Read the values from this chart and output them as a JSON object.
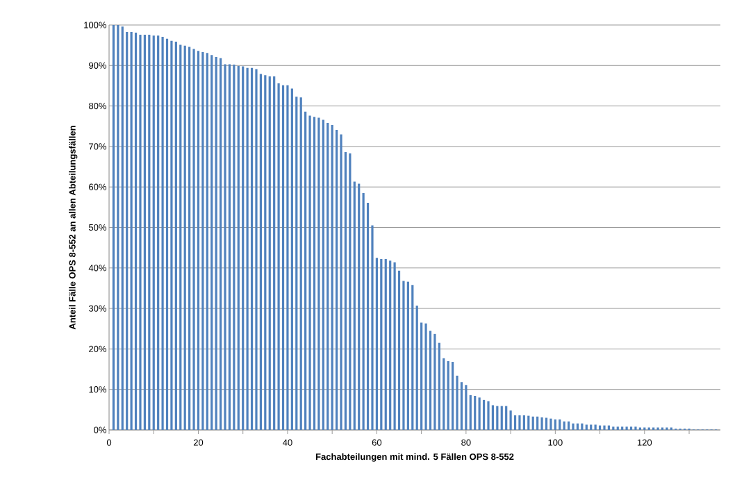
{
  "chart_data": {
    "type": "bar",
    "xlabel": "Fachabteilungen mit mind. 5 Fällen OPS 8-552",
    "ylabel": "Anteil Fälle OPS 8-552 an allen Abteilungsfällen",
    "color": "#4f81bd",
    "x": [
      1,
      2,
      3,
      4,
      5,
      6,
      7,
      8,
      9,
      10,
      11,
      12,
      13,
      14,
      15,
      16,
      17,
      18,
      19,
      20,
      21,
      22,
      23,
      24,
      25,
      26,
      27,
      28,
      29,
      30,
      31,
      32,
      33,
      34,
      35,
      36,
      37,
      38,
      39,
      40,
      41,
      42,
      43,
      44,
      45,
      46,
      47,
      48,
      49,
      50,
      51,
      52,
      53,
      54,
      55,
      56,
      57,
      58,
      59,
      60,
      61,
      62,
      63,
      64,
      65,
      66,
      67,
      68,
      69,
      70,
      71,
      72,
      73,
      74,
      75,
      76,
      77,
      78,
      79,
      80,
      81,
      82,
      83,
      84,
      85,
      86,
      87,
      88,
      89,
      90,
      91,
      92,
      93,
      94,
      95,
      96,
      97,
      98,
      99,
      100,
      101,
      102,
      103,
      104,
      105,
      106,
      107,
      108,
      109,
      110,
      111,
      112,
      113,
      114,
      115,
      116,
      117,
      118,
      119,
      120,
      121,
      122,
      123,
      124,
      125,
      126,
      127,
      128,
      129,
      130,
      131,
      132,
      133,
      134,
      135,
      136
    ],
    "values": [
      100,
      100,
      99.6,
      98.3,
      98.3,
      98.1,
      97.6,
      97.6,
      97.6,
      97.4,
      97.4,
      97.1,
      96.6,
      96.1,
      95.9,
      95.1,
      94.9,
      94.6,
      94.1,
      93.6,
      93.3,
      93.1,
      92.6,
      92.1,
      91.8,
      90.3,
      90.3,
      90.2,
      89.9,
      89.8,
      89.4,
      89.4,
      89.1,
      87.9,
      87.6,
      87.3,
      87.3,
      85.6,
      85.1,
      85.1,
      84.3,
      82.3,
      82.1,
      78.6,
      77.6,
      77.3,
      77.1,
      76.6,
      75.8,
      75.3,
      74.1,
      73.0,
      68.6,
      68.3,
      61.3,
      60.8,
      58.5,
      56.1,
      50.5,
      42.5,
      42.2,
      42.2,
      41.8,
      41.4,
      39.3,
      36.8,
      36.6,
      35.8,
      30.7,
      26.5,
      26.3,
      24.5,
      23.7,
      21.5,
      17.7,
      17.0,
      16.8,
      13.4,
      11.8,
      11.1,
      8.6,
      8.4,
      8.0,
      7.4,
      7.1,
      6.1,
      5.9,
      5.9,
      5.9,
      4.8,
      3.6,
      3.6,
      3.6,
      3.5,
      3.3,
      3.3,
      3.1,
      3.0,
      2.8,
      2.6,
      2.6,
      2.1,
      2.1,
      1.6,
      1.6,
      1.6,
      1.3,
      1.3,
      1.3,
      1.1,
      1.1,
      1.1,
      0.8,
      0.8,
      0.8,
      0.8,
      0.8,
      0.8,
      0.6,
      0.6,
      0.6,
      0.6,
      0.6,
      0.6,
      0.6,
      0.6,
      0.3,
      0.3,
      0.3,
      0.3,
      0.1,
      0.1,
      0.1,
      0.1,
      0.1,
      0.1
    ],
    "xlim": [
      0,
      137
    ],
    "xticks": [
      0,
      {
        "value": 10,
        "label": null
      },
      20,
      {
        "value": 30,
        "label": null
      },
      40,
      {
        "value": 50,
        "label": null
      },
      60,
      {
        "value": 70,
        "label": null
      },
      80,
      {
        "value": 90,
        "label": null
      },
      100,
      {
        "value": 110,
        "label": null
      },
      120,
      {
        "value": 130,
        "label": null
      }
    ],
    "ylim": [
      0,
      100
    ],
    "yticks": [
      {
        "value": 0,
        "label": "0%"
      },
      {
        "value": 10,
        "label": "10%"
      },
      {
        "value": 20,
        "label": "20%"
      },
      {
        "value": 30,
        "label": "30%"
      },
      {
        "value": 40,
        "label": "40%"
      },
      {
        "value": 50,
        "label": "50%"
      },
      {
        "value": 60,
        "label": "60%"
      },
      {
        "value": 70,
        "label": "70%"
      },
      {
        "value": 80,
        "label": "80%"
      },
      {
        "value": 90,
        "label": "90%"
      },
      {
        "value": 100,
        "label": "100%"
      }
    ],
    "grid": "y"
  }
}
